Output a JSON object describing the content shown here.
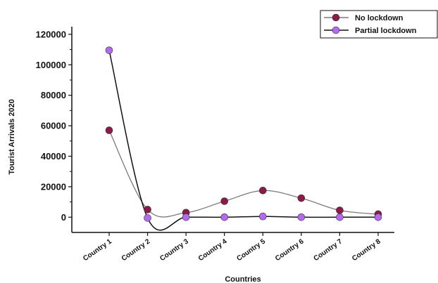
{
  "chart_data": {
    "type": "line",
    "title": "",
    "xlabel": "Countries",
    "ylabel": "Tourist Arrivals 2020",
    "categories": [
      "Country 1",
      "Country 2",
      "Country 3",
      "Country 4",
      "Country 5",
      "Country 6",
      "Country 7",
      "Country 8"
    ],
    "yticks": [
      0,
      20000,
      40000,
      60000,
      80000,
      100000,
      120000
    ],
    "ylim": [
      -10000,
      125000
    ],
    "grid": false,
    "legend_position": "top-right",
    "series": [
      {
        "name": "No lockdown",
        "values": [
          57000,
          5000,
          3000,
          10500,
          17500,
          12500,
          4500,
          2000
        ],
        "color": "#8b1a4a",
        "line_color": "#7a7a7a"
      },
      {
        "name": "Partial lockdown",
        "values": [
          109500,
          -500,
          0,
          0,
          500,
          0,
          0,
          0
        ],
        "color": "#b36af0",
        "line_color": "#111111"
      }
    ]
  }
}
